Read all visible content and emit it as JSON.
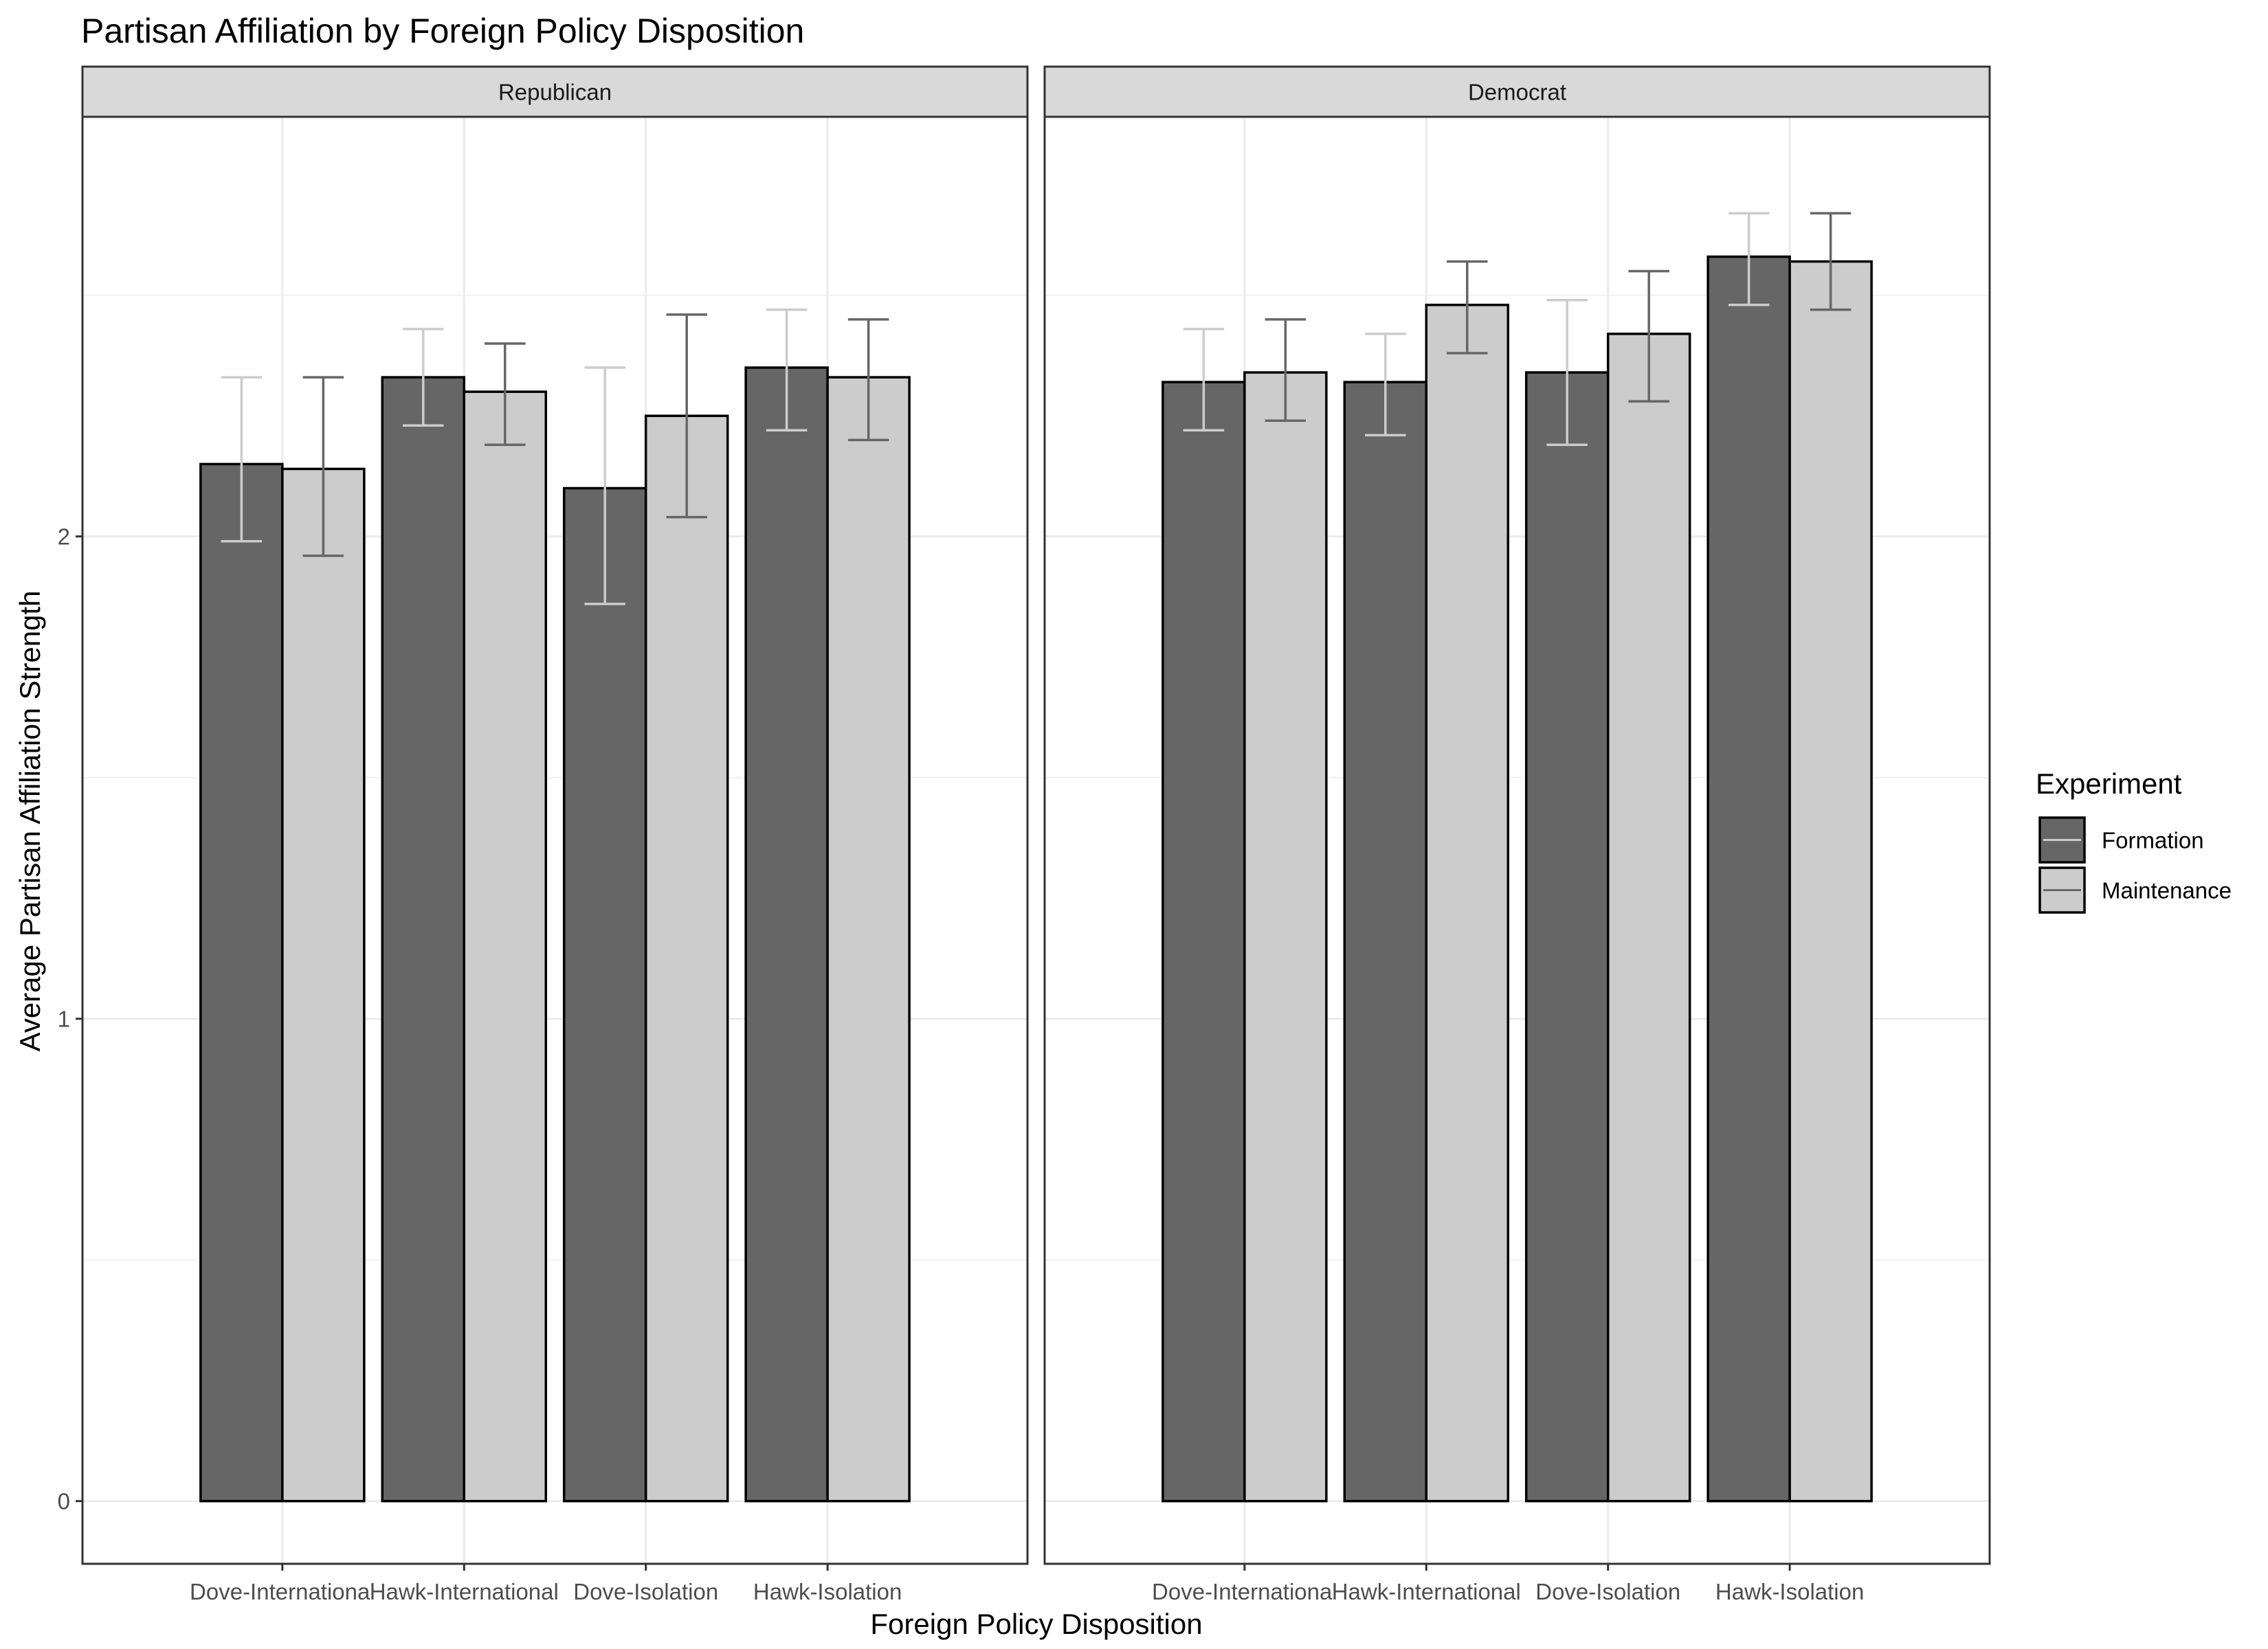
{
  "chart_data": {
    "type": "bar",
    "title": "Partisan Affiliation by Foreign Policy Disposition",
    "xlabel": "Foreign Policy Disposition",
    "ylabel": "Average Partisan Affiliation Strength",
    "ylim": [
      -0.13,
      2.87
    ],
    "yticks": [
      0,
      1,
      2
    ],
    "grid": true,
    "legend": {
      "title": "Experiment",
      "position": "right",
      "entries": [
        "Formation",
        "Maintenance"
      ]
    },
    "categories": [
      "Dove-International",
      "Hawk-International",
      "Dove-Isolation",
      "Hawk-Isolation"
    ],
    "panels": [
      {
        "label": "Republican",
        "series": [
          {
            "name": "Formation",
            "values": [
              2.15,
              2.33,
              2.1,
              2.35
            ],
            "ci_low": [
              1.99,
              2.23,
              1.86,
              2.22
            ],
            "ci_high": [
              2.33,
              2.43,
              2.35,
              2.47
            ]
          },
          {
            "name": "Maintenance",
            "values": [
              2.14,
              2.3,
              2.25,
              2.33
            ],
            "ci_low": [
              1.96,
              2.19,
              2.04,
              2.2
            ],
            "ci_high": [
              2.33,
              2.4,
              2.46,
              2.45
            ]
          }
        ]
      },
      {
        "label": "Democrat",
        "series": [
          {
            "name": "Formation",
            "values": [
              2.32,
              2.32,
              2.34,
              2.58
            ],
            "ci_low": [
              2.22,
              2.21,
              2.19,
              2.48
            ],
            "ci_high": [
              2.43,
              2.42,
              2.49,
              2.67
            ]
          },
          {
            "name": "Maintenance",
            "values": [
              2.34,
              2.48,
              2.42,
              2.57
            ],
            "ci_low": [
              2.24,
              2.38,
              2.28,
              2.47
            ],
            "ci_high": [
              2.45,
              2.57,
              2.55,
              2.67
            ]
          }
        ]
      }
    ],
    "colors": {
      "Formation": "#666666",
      "Maintenance": "#cccccc",
      "errorbar_on_dark": "#cccccc",
      "errorbar_on_light": "#666666"
    }
  }
}
